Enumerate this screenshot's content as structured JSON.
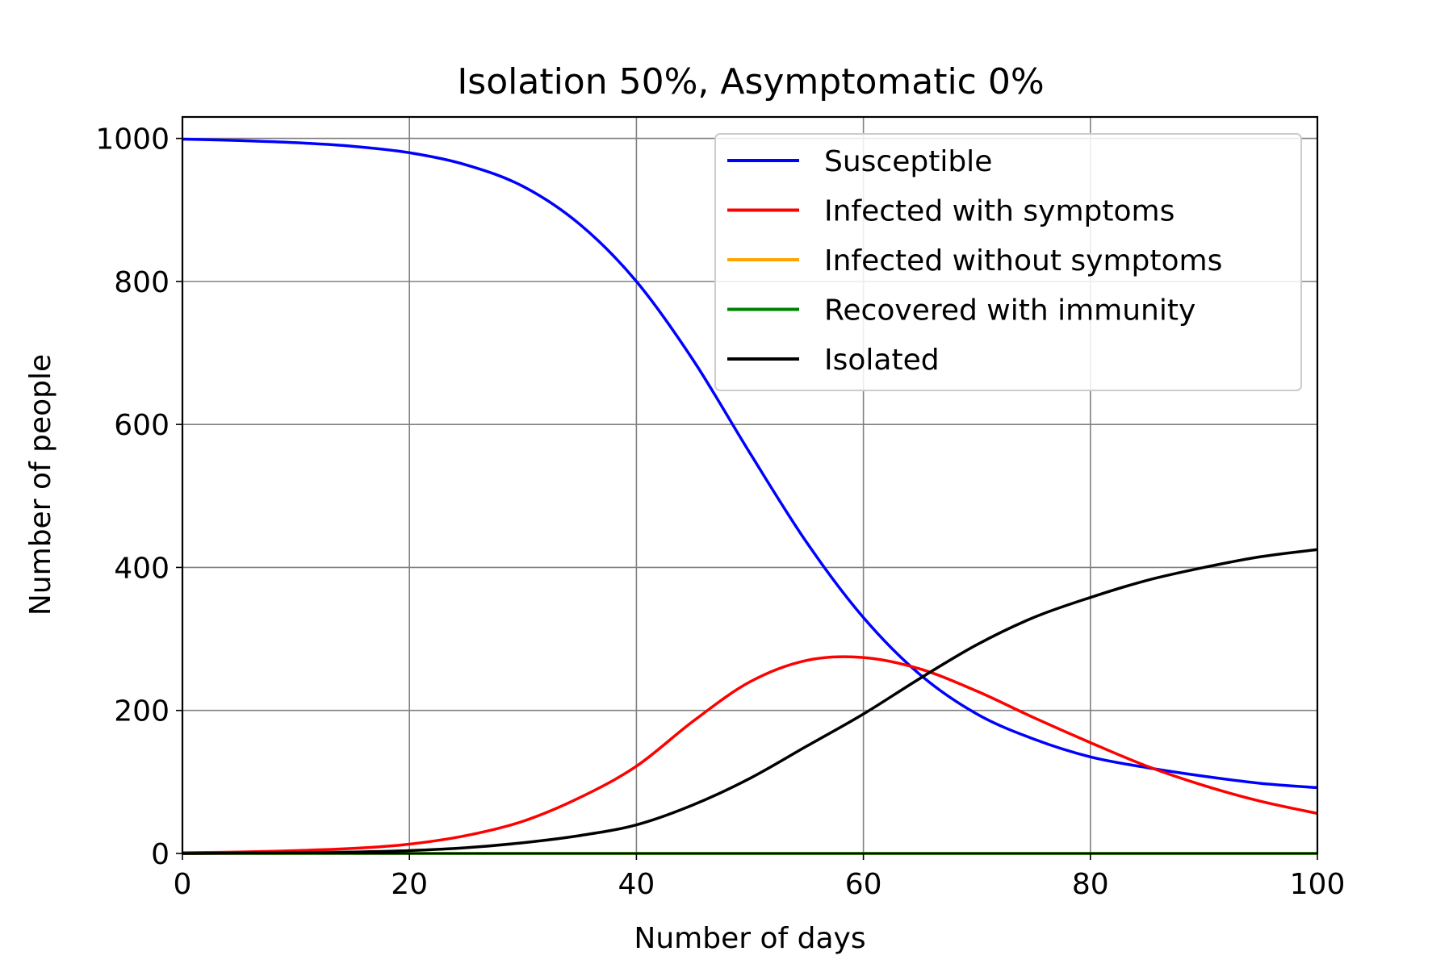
{
  "chart_data": {
    "type": "line",
    "title": "Isolation 50%, Asymptomatic 0%",
    "xlabel": "Number of days",
    "ylabel": "Number of people",
    "xlim": [
      0,
      100
    ],
    "ylim": [
      0,
      1030
    ],
    "xticks": [
      0,
      20,
      40,
      60,
      80,
      100
    ],
    "yticks": [
      0,
      200,
      400,
      600,
      800,
      1000
    ],
    "xtick_labels": [
      "0",
      "20",
      "40",
      "60",
      "80",
      "100"
    ],
    "ytick_labels": [
      "0",
      "200",
      "400",
      "600",
      "800",
      "1000"
    ],
    "grid": true,
    "legend_position": "top-right",
    "x": [
      0,
      5,
      10,
      15,
      20,
      25,
      30,
      35,
      40,
      45,
      50,
      55,
      60,
      65,
      70,
      75,
      80,
      85,
      90,
      95,
      100
    ],
    "series": [
      {
        "name": "Susceptible",
        "color": "#0000ff",
        "values": [
          999,
          997,
          994,
          989,
          980,
          963,
          933,
          880,
          800,
          690,
          560,
          435,
          330,
          250,
          195,
          160,
          135,
          120,
          108,
          98,
          92
        ]
      },
      {
        "name": "Infected with symptoms",
        "color": "#ff0000",
        "values": [
          1,
          2,
          4,
          7,
          13,
          25,
          45,
          78,
          122,
          185,
          240,
          270,
          274,
          258,
          227,
          190,
          155,
          122,
          95,
          73,
          56
        ]
      },
      {
        "name": "Infected without symptoms",
        "color": "#ffa500",
        "values": [
          0,
          0,
          0,
          0,
          0,
          0,
          0,
          0,
          0,
          0,
          0,
          0,
          0,
          0,
          0,
          0,
          0,
          0,
          0,
          0,
          0
        ]
      },
      {
        "name": "Recovered with immunity",
        "color": "#008000",
        "values": [
          0,
          0,
          0,
          0,
          0,
          0,
          0,
          0,
          0,
          0,
          0,
          0,
          0,
          0,
          0,
          0,
          0,
          0,
          0,
          0,
          0
        ]
      },
      {
        "name": "Isolated",
        "color": "#000000",
        "values": [
          0,
          0.5,
          1,
          2,
          4,
          8,
          15,
          25,
          40,
          68,
          105,
          150,
          195,
          245,
          292,
          330,
          358,
          382,
          400,
          415,
          425
        ]
      }
    ]
  }
}
